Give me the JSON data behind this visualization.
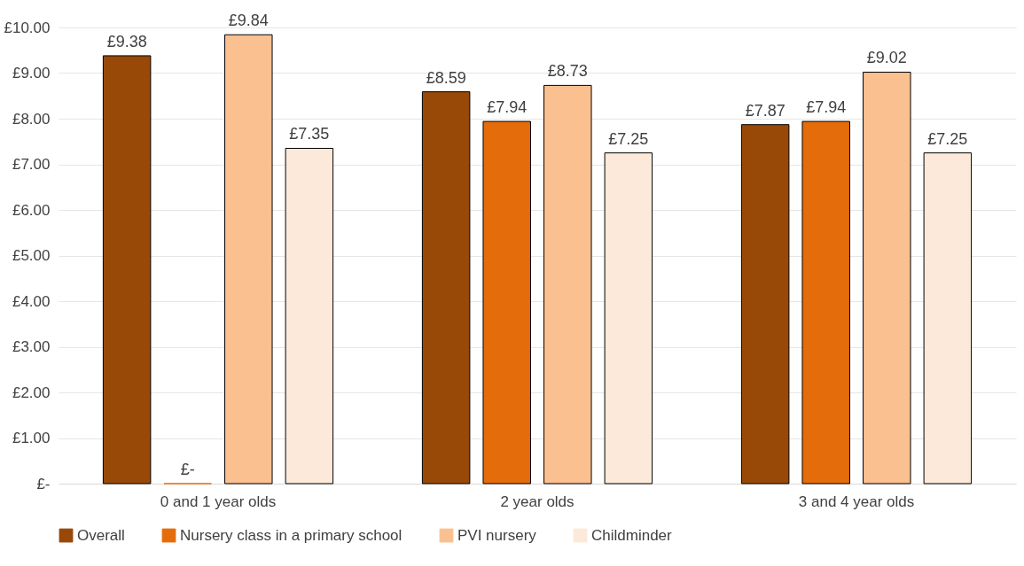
{
  "chart_data": {
    "type": "bar",
    "categories": [
      "0 and 1 year olds",
      "2 year olds",
      "3 and 4 year olds"
    ],
    "series": [
      {
        "name": "Overall",
        "color": "#984807",
        "values": [
          9.38,
          8.59,
          7.87
        ],
        "value_labels": [
          "£9.38",
          "£8.59",
          "£7.87"
        ]
      },
      {
        "name": "Nursery class in a primary school",
        "color": "#e46c0a",
        "values": [
          0,
          7.94,
          7.94
        ],
        "value_labels": [
          "£-",
          "£7.94",
          "£7.94"
        ]
      },
      {
        "name": "PVI nursery",
        "color": "#fac090",
        "values": [
          9.84,
          8.73,
          9.02
        ],
        "value_labels": [
          "£9.84",
          "£8.73",
          "£9.02"
        ]
      },
      {
        "name": "Childminder",
        "color": "#fde9d9",
        "values": [
          7.35,
          7.25,
          7.25
        ],
        "value_labels": [
          "£7.35",
          "£7.25",
          "£7.25"
        ]
      }
    ],
    "ylim": [
      0,
      10
    ],
    "yticks": [
      {
        "value": 0,
        "label": "£-"
      },
      {
        "value": 1,
        "label": "£1.00"
      },
      {
        "value": 2,
        "label": "£2.00"
      },
      {
        "value": 3,
        "label": "£3.00"
      },
      {
        "value": 4,
        "label": "£4.00"
      },
      {
        "value": 5,
        "label": "£5.00"
      },
      {
        "value": 6,
        "label": "£6.00"
      },
      {
        "value": 7,
        "label": "£7.00"
      },
      {
        "value": 8,
        "label": "£8.00"
      },
      {
        "value": 9,
        "label": "£9.00"
      },
      {
        "value": 10,
        "label": "£10.00"
      }
    ],
    "grid": "y",
    "legend": "bottom"
  }
}
